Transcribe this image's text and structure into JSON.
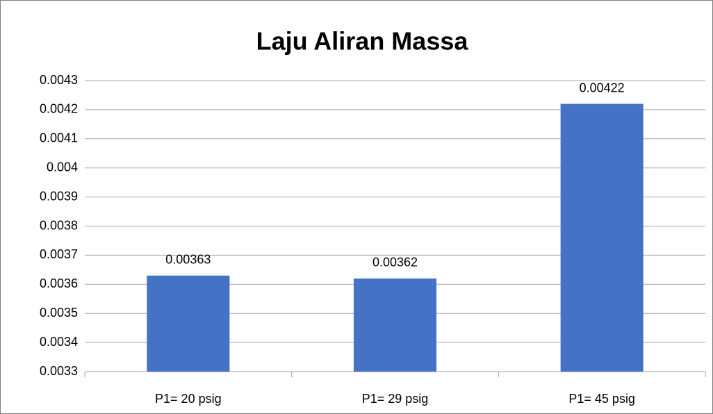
{
  "chart_data": {
    "type": "bar",
    "title": "Laju Aliran Massa",
    "categories": [
      "P1= 20 psig",
      "P1= 29 psig",
      "P1= 45 psig"
    ],
    "values": [
      0.00363,
      0.00362,
      0.00422
    ],
    "color": "#4472c4",
    "ylim": [
      0.0033,
      0.0043
    ],
    "yticks": [
      0.0033,
      0.0034,
      0.0035,
      0.0036,
      0.0037,
      0.0038,
      0.0039,
      0.004,
      0.0041,
      0.0042,
      0.0043
    ],
    "grid": true
  }
}
